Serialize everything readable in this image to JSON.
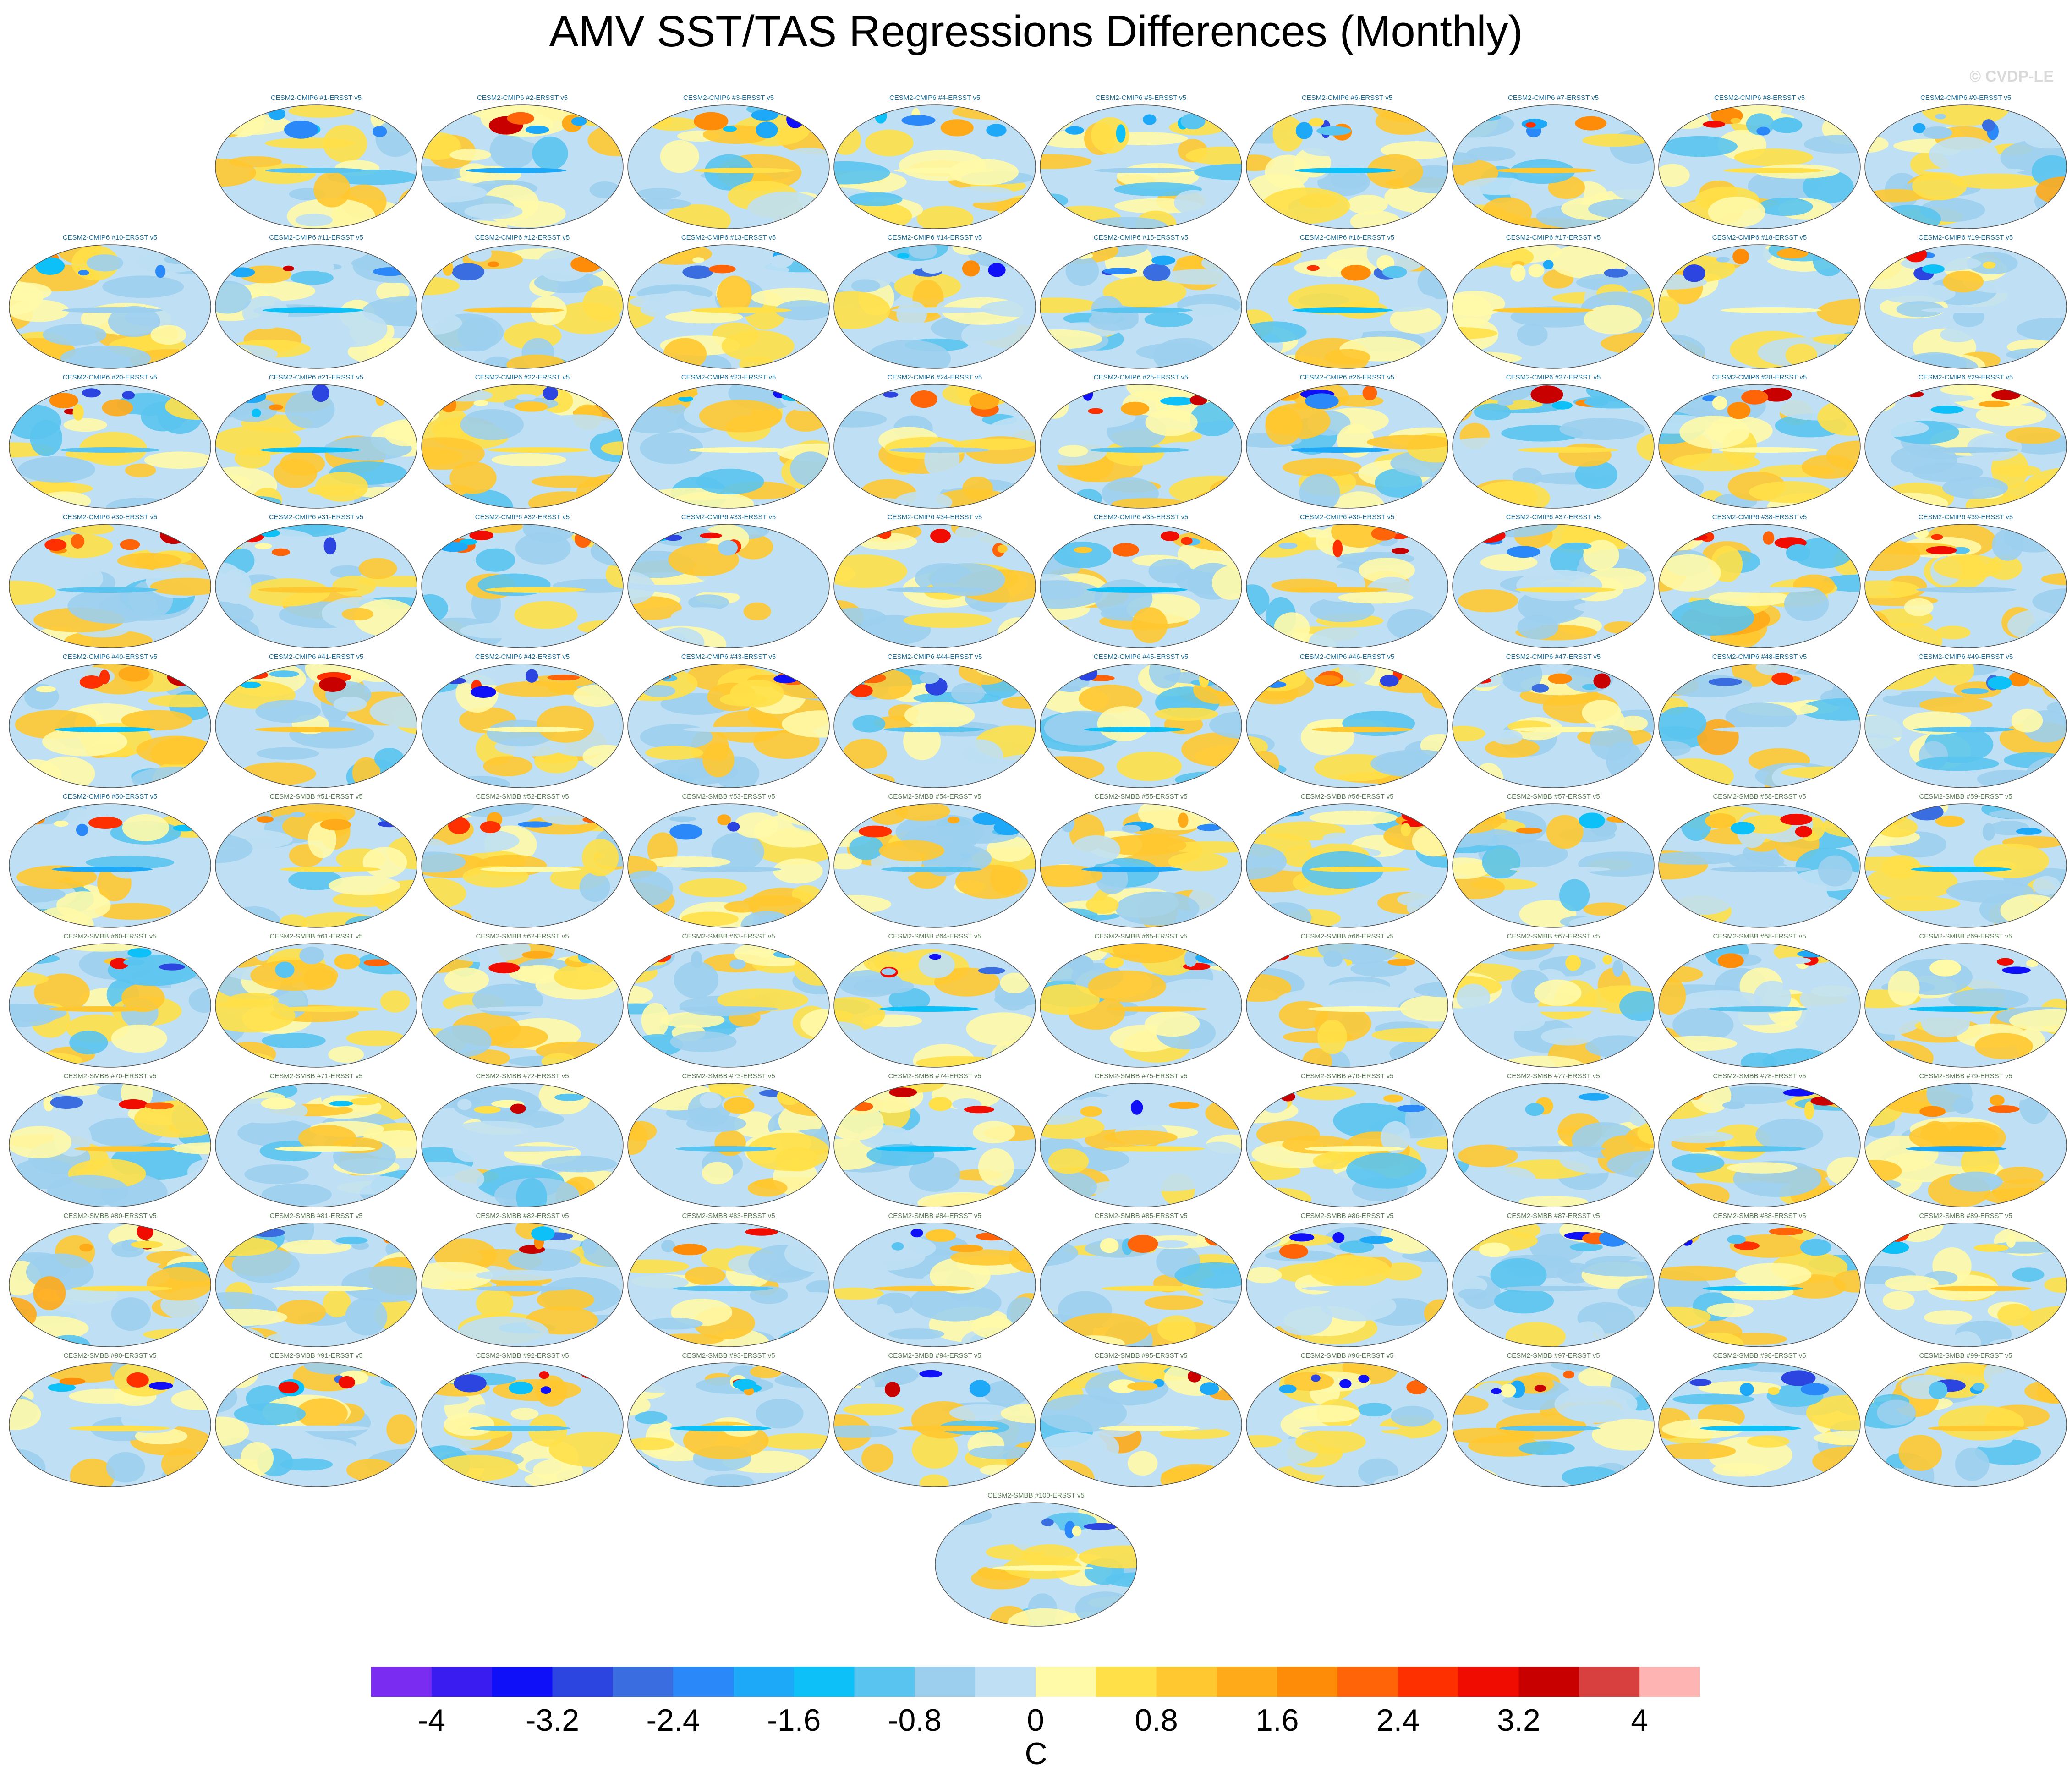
{
  "title": "AMV SST/TAS Regressions Differences (Monthly)",
  "watermark": "© CVDP-LE",
  "chart_data": {
    "type": "heatmap",
    "map_projection": "global (Robinson-like ellipse)",
    "panel_layout": "10 rows of up to 10 small maps; last panel centered at bottom",
    "panels": [
      "CESM2-CMIP6 #1-ERSST v5",
      "CESM2-CMIP6 #2-ERSST v5",
      "CESM2-CMIP6 #3-ERSST v5",
      "CESM2-CMIP6 #4-ERSST v5",
      "CESM2-CMIP6 #5-ERSST v5",
      "CESM2-CMIP6 #6-ERSST v5",
      "CESM2-CMIP6 #7-ERSST v5",
      "CESM2-CMIP6 #8-ERSST v5",
      "CESM2-CMIP6 #9-ERSST v5",
      "CESM2-CMIP6 #10-ERSST v5",
      "CESM2-CMIP6 #11-ERSST v5",
      "CESM2-CMIP6 #12-ERSST v5",
      "CESM2-CMIP6 #13-ERSST v5",
      "CESM2-CMIP6 #14-ERSST v5",
      "CESM2-CMIP6 #15-ERSST v5",
      "CESM2-CMIP6 #16-ERSST v5",
      "CESM2-CMIP6 #17-ERSST v5",
      "CESM2-CMIP6 #18-ERSST v5",
      "CESM2-CMIP6 #19-ERSST v5",
      "CESM2-CMIP6 #20-ERSST v5",
      "CESM2-CMIP6 #21-ERSST v5",
      "CESM2-CMIP6 #22-ERSST v5",
      "CESM2-CMIP6 #23-ERSST v5",
      "CESM2-CMIP6 #24-ERSST v5",
      "CESM2-CMIP6 #25-ERSST v5",
      "CESM2-CMIP6 #26-ERSST v5",
      "CESM2-CMIP6 #27-ERSST v5",
      "CESM2-CMIP6 #28-ERSST v5",
      "CESM2-CMIP6 #29-ERSST v5",
      "CESM2-CMIP6 #30-ERSST v5",
      "CESM2-CMIP6 #31-ERSST v5",
      "CESM2-CMIP6 #32-ERSST v5",
      "CESM2-CMIP6 #33-ERSST v5",
      "CESM2-CMIP6 #34-ERSST v5",
      "CESM2-CMIP6 #35-ERSST v5",
      "CESM2-CMIP6 #36-ERSST v5",
      "CESM2-CMIP6 #37-ERSST v5",
      "CESM2-CMIP6 #38-ERSST v5",
      "CESM2-CMIP6 #39-ERSST v5",
      "CESM2-CMIP6 #40-ERSST v5",
      "CESM2-CMIP6 #41-ERSST v5",
      "CESM2-CMIP6 #42-ERSST v5",
      "CESM2-CMIP6 #43-ERSST v5",
      "CESM2-CMIP6 #44-ERSST v5",
      "CESM2-CMIP6 #45-ERSST v5",
      "CESM2-CMIP6 #46-ERSST v5",
      "CESM2-CMIP6 #47-ERSST v5",
      "CESM2-CMIP6 #48-ERSST v5",
      "CESM2-CMIP6 #49-ERSST v5",
      "CESM2-CMIP6 #50-ERSST v5",
      "CESM2-SMBB #51-ERSST v5",
      "CESM2-SMBB #52-ERSST v5",
      "CESM2-SMBB #53-ERSST v5",
      "CESM2-SMBB #54-ERSST v5",
      "CESM2-SMBB #55-ERSST v5",
      "CESM2-SMBB #56-ERSST v5",
      "CESM2-SMBB #57-ERSST v5",
      "CESM2-SMBB #58-ERSST v5",
      "CESM2-SMBB #59-ERSST v5",
      "CESM2-SMBB #60-ERSST v5",
      "CESM2-SMBB #61-ERSST v5",
      "CESM2-SMBB #62-ERSST v5",
      "CESM2-SMBB #63-ERSST v5",
      "CESM2-SMBB #64-ERSST v5",
      "CESM2-SMBB #65-ERSST v5",
      "CESM2-SMBB #66-ERSST v5",
      "CESM2-SMBB #67-ERSST v5",
      "CESM2-SMBB #68-ERSST v5",
      "CESM2-SMBB #69-ERSST v5",
      "CESM2-SMBB #70-ERSST v5",
      "CESM2-SMBB #71-ERSST v5",
      "CESM2-SMBB #72-ERSST v5",
      "CESM2-SMBB #73-ERSST v5",
      "CESM2-SMBB #74-ERSST v5",
      "CESM2-SMBB #75-ERSST v5",
      "CESM2-SMBB #76-ERSST v5",
      "CESM2-SMBB #77-ERSST v5",
      "CESM2-SMBB #78-ERSST v5",
      "CESM2-SMBB #79-ERSST v5",
      "CESM2-SMBB #80-ERSST v5",
      "CESM2-SMBB #81-ERSST v5",
      "CESM2-SMBB #82-ERSST v5",
      "CESM2-SMBB #83-ERSST v5",
      "CESM2-SMBB #84-ERSST v5",
      "CESM2-SMBB #85-ERSST v5",
      "CESM2-SMBB #86-ERSST v5",
      "CESM2-SMBB #87-ERSST v5",
      "CESM2-SMBB #88-ERSST v5",
      "CESM2-SMBB #89-ERSST v5",
      "CESM2-SMBB #90-ERSST v5",
      "CESM2-SMBB #91-ERSST v5",
      "CESM2-SMBB #92-ERSST v5",
      "CESM2-SMBB #93-ERSST v5",
      "CESM2-SMBB #94-ERSST v5",
      "CESM2-SMBB #95-ERSST v5",
      "CESM2-SMBB #96-ERSST v5",
      "CESM2-SMBB #97-ERSST v5",
      "CESM2-SMBB #98-ERSST v5",
      "CESM2-SMBB #99-ERSST v5",
      "CESM2-SMBB #100-ERSST v5"
    ],
    "colorbar": {
      "label": "C",
      "levels": [
        -4.4,
        -4,
        -3.6,
        -3.2,
        -2.8,
        -2.4,
        -2,
        -1.6,
        -1.2,
        -0.8,
        -0.4,
        0,
        0.4,
        0.8,
        1.2,
        1.6,
        2,
        2.4,
        2.8,
        3.2,
        3.6,
        4,
        4.4
      ],
      "tick_labels": [
        "-4",
        "-3.2",
        "-2.4",
        "-1.6",
        "-0.8",
        "0",
        "0.8",
        "1.6",
        "2.4",
        "3.2",
        "4"
      ],
      "tick_values": [
        -4,
        -3.2,
        -2.4,
        -1.6,
        -0.8,
        0,
        0.8,
        1.6,
        2.4,
        3.2,
        4
      ],
      "colors": [
        "#7a2cf0",
        "#3a1cf0",
        "#1010f8",
        "#2c44e0",
        "#3a6ee0",
        "#2a88f8",
        "#1ea8f8",
        "#0ec0f8",
        "#5ac4f0",
        "#9ccfee",
        "#bfe0f4",
        "#fffaa8",
        "#ffe048",
        "#ffc830",
        "#ffaa18",
        "#ff8c08",
        "#ff6408",
        "#ff3000",
        "#f00c00",
        "#c80000",
        "#d84040",
        "#ffb4b4"
      ]
    }
  }
}
